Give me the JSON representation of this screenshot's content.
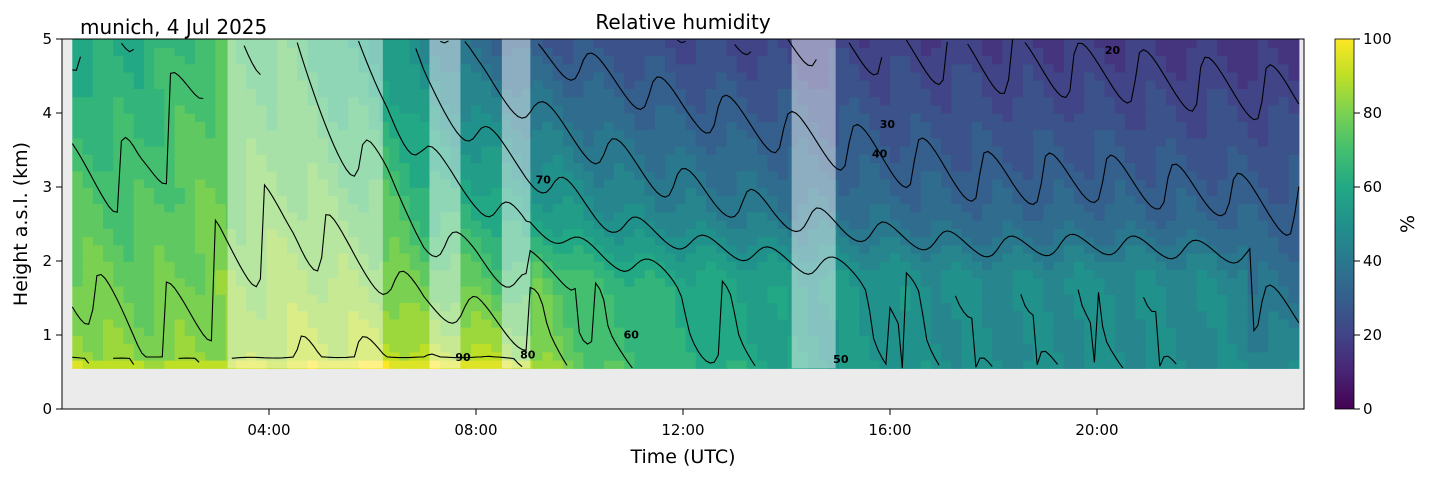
{
  "chart_data": {
    "type": "heatmap",
    "title": "Relative humidity",
    "subtitle": "munich, 4 Jul 2025",
    "xlabel": "Time (UTC)",
    "ylabel": "Height a.s.l. (km)",
    "xlim_hours": [
      0,
      24
    ],
    "ylim": [
      0,
      5
    ],
    "x_ticks": [
      {
        "value": 4,
        "label": "04:00"
      },
      {
        "value": 8,
        "label": "08:00"
      },
      {
        "value": 12,
        "label": "12:00"
      },
      {
        "value": 16,
        "label": "16:00"
      },
      {
        "value": 20,
        "label": "20:00"
      }
    ],
    "y_ticks": [
      {
        "value": 0,
        "label": "0"
      },
      {
        "value": 1,
        "label": "1"
      },
      {
        "value": 2,
        "label": "2"
      },
      {
        "value": 3,
        "label": "3"
      },
      {
        "value": 4,
        "label": "4"
      },
      {
        "value": 5,
        "label": "5"
      }
    ],
    "colorbar": {
      "label": "%",
      "range": [
        0,
        100
      ],
      "colormap": "viridis",
      "ticks": [
        {
          "value": 0,
          "label": "0"
        },
        {
          "value": 20,
          "label": "20"
        },
        {
          "value": 40,
          "label": "40"
        },
        {
          "value": 60,
          "label": "60"
        },
        {
          "value": 80,
          "label": "80"
        },
        {
          "value": 100,
          "label": "100"
        }
      ]
    },
    "data_extent": {
      "time_start_h": 0.2,
      "time_end_h": 23.9,
      "height_min_km": 0.55,
      "height_max_km": 5
    },
    "masked_intervals_h": [
      {
        "start": 3.2,
        "end": 6.2
      },
      {
        "start": 7.1,
        "end": 7.7
      },
      {
        "start": 8.5,
        "end": 9.05
      },
      {
        "start": 14.1,
        "end": 14.95
      }
    ],
    "rh_profiles": [
      {
        "t": 0.2,
        "surface": 88,
        "top": 60
      },
      {
        "t": 1.5,
        "surface": 82,
        "top": 62
      },
      {
        "t": 3.0,
        "surface": 84,
        "top": 72
      },
      {
        "t": 4.5,
        "surface": 90,
        "top": 70
      },
      {
        "t": 6.3,
        "surface": 92,
        "top": 55
      },
      {
        "t": 7.0,
        "surface": 90,
        "top": 45
      },
      {
        "t": 8.0,
        "surface": 92,
        "top": 35
      },
      {
        "t": 9.2,
        "surface": 85,
        "top": 28
      },
      {
        "t": 10.5,
        "surface": 72,
        "top": 25
      },
      {
        "t": 12.0,
        "surface": 65,
        "top": 22
      },
      {
        "t": 14.0,
        "surface": 58,
        "top": 20
      },
      {
        "t": 16.0,
        "surface": 52,
        "top": 19
      },
      {
        "t": 18.0,
        "surface": 48,
        "top": 18
      },
      {
        "t": 20.0,
        "surface": 50,
        "top": 17
      },
      {
        "t": 22.0,
        "surface": 48,
        "top": 16
      },
      {
        "t": 23.9,
        "surface": 46,
        "top": 15
      }
    ],
    "contour_levels": [
      20,
      30,
      40,
      50,
      60,
      70,
      80,
      90
    ],
    "contour_labels": [
      {
        "text": "20",
        "t": 20.3,
        "h": 4.8
      },
      {
        "text": "30",
        "t": 15.95,
        "h": 3.8
      },
      {
        "text": "40",
        "t": 15.8,
        "h": 3.4
      },
      {
        "text": "70",
        "t": 9.3,
        "h": 3.05
      },
      {
        "text": "60",
        "t": 11.0,
        "h": 0.95
      },
      {
        "text": "90",
        "t": 7.75,
        "h": 0.65
      },
      {
        "text": "80",
        "t": 9.0,
        "h": 0.68
      },
      {
        "text": "50",
        "t": 15.05,
        "h": 0.62
      }
    ]
  }
}
